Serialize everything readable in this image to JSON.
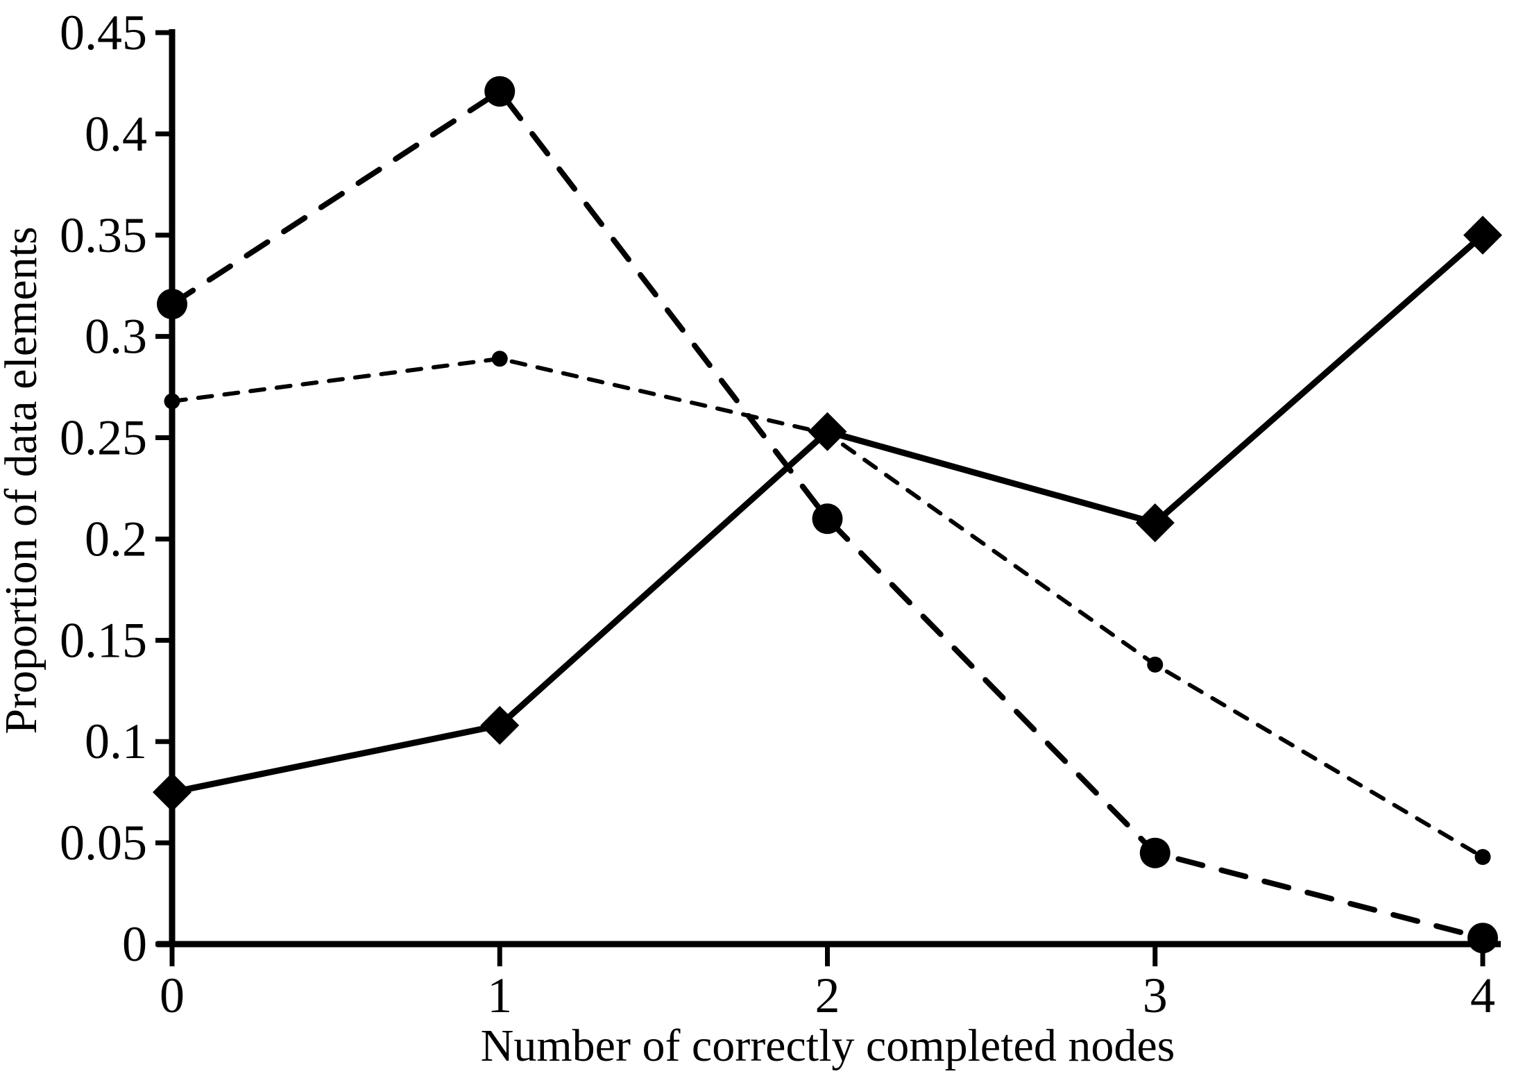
{
  "figure": {
    "background": "#ffffff",
    "ink_color": "#000000"
  },
  "chart_data": {
    "type": "line",
    "title": "",
    "xlabel": "Number of correctly completed nodes",
    "ylabel": "Proportion of data elements",
    "x": [
      0,
      1,
      2,
      3,
      4
    ],
    "x_tick_labels": [
      "0",
      "1",
      "2",
      "3",
      "4"
    ],
    "y_ticks": [
      0,
      0.05,
      0.1,
      0.15,
      0.2,
      0.25,
      0.3,
      0.35,
      0.4,
      0.45
    ],
    "y_tick_labels": [
      "0",
      "0.05",
      "0.1",
      "0.15",
      "0.2",
      "0.25",
      "0.3",
      "0.35",
      "0.4",
      "0.45"
    ],
    "xlim": [
      0,
      4
    ],
    "ylim": [
      0,
      0.45
    ],
    "grid": false,
    "legend_position": "none",
    "series": [
      {
        "name": "solid-diamond",
        "line_style": "solid",
        "marker": "diamond",
        "color": "#000000",
        "values": [
          0.075,
          0.108,
          0.253,
          0.208,
          0.35
        ]
      },
      {
        "name": "long-dash-circle",
        "line_style": "long-dash",
        "marker": "large-circle",
        "color": "#000000",
        "values": [
          0.316,
          0.421,
          0.21,
          0.045,
          0.003
        ]
      },
      {
        "name": "short-dash-dot",
        "line_style": "short-dash",
        "marker": "small-dot",
        "color": "#000000",
        "values": [
          0.268,
          0.289,
          0.252,
          0.138,
          0.043
        ]
      }
    ]
  }
}
